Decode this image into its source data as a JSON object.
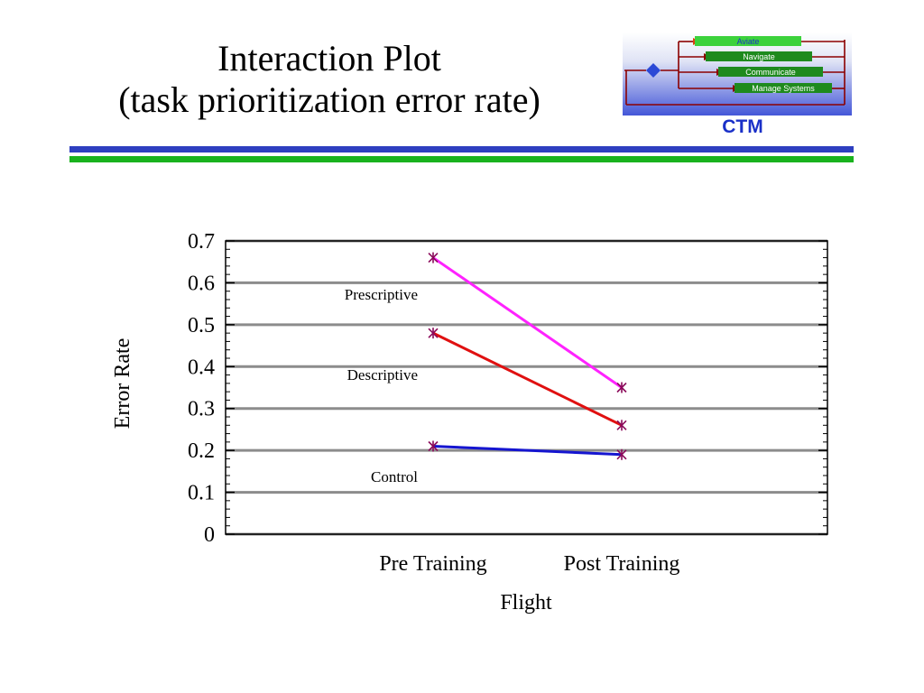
{
  "header": {
    "title_line1": "Interaction Plot",
    "title_line2": "(task prioritization error rate)"
  },
  "logo": {
    "items": [
      "Aviate",
      "Navigate",
      "Communicate",
      "Manage Systems"
    ],
    "caption": "CTM",
    "colors": {
      "item_fill": "#2fa82f",
      "arrow": "#8b0000",
      "diamond": "#2b49d6",
      "caption": "#1a30c8"
    }
  },
  "rules": {
    "blue": "#2e3fc0",
    "green": "#19b21e"
  },
  "chart_data": {
    "type": "line",
    "categories": [
      "Pre Training",
      "Post Training"
    ],
    "series": [
      {
        "name": "Prescriptive",
        "values": [
          0.66,
          0.35
        ],
        "color": "#ff22ff"
      },
      {
        "name": "Descriptive",
        "values": [
          0.48,
          0.26
        ],
        "color": "#e01010"
      },
      {
        "name": "Control",
        "values": [
          0.21,
          0.19
        ],
        "color": "#1515d0"
      }
    ],
    "marker_color": "#8b0a5a",
    "xlabel": "Flight",
    "ylabel": "Error Rate",
    "ylim": [
      0,
      0.7
    ],
    "yticks": [
      "0",
      "0.1",
      "0.2",
      "0.3",
      "0.4",
      "0.5",
      "0.6",
      "0.7"
    ],
    "grid": true,
    "grid_color": "#8c8c8c"
  }
}
